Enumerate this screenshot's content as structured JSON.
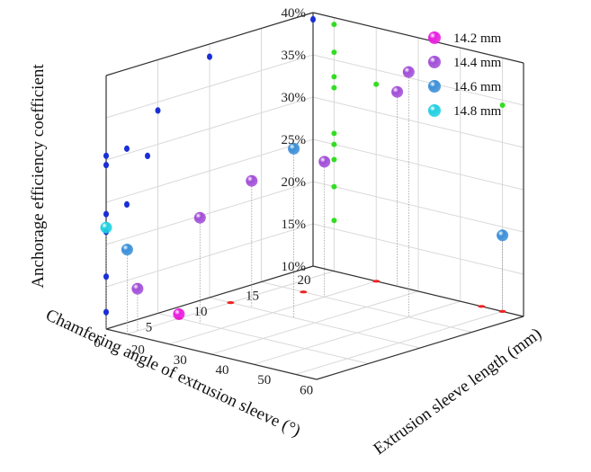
{
  "chart_data": {
    "type": "scatter3d",
    "x_axis": {
      "label": "Chamfering angle of extrusion sleeve (°)",
      "ticks": [
        "0",
        "5",
        "10",
        "15",
        "20"
      ],
      "range": [
        0,
        20
      ]
    },
    "y_axis": {
      "label": "Extrusion sleeve length (mm)",
      "ticks": [
        "20",
        "30",
        "40",
        "50",
        "60"
      ],
      "range": [
        15,
        65
      ]
    },
    "z_axis": {
      "label": "Anchorage efficiency coefficient",
      "ticks": [
        "10%",
        "15%",
        "20%",
        "25%",
        "30%",
        "35%",
        "40%"
      ],
      "range": [
        10,
        40
      ]
    },
    "grid": true,
    "legend_position": "top-right",
    "series": [
      {
        "name": "14.2 mm",
        "color": "#e81ee0",
        "points": [
          [
            5,
            20,
            10.5
          ]
        ]
      },
      {
        "name": "14.4 mm",
        "color": "#a24ed8",
        "points": [
          [
            1,
            20,
            15
          ],
          [
            5,
            25,
            22.5
          ],
          [
            10,
            25,
            25
          ],
          [
            15,
            30,
            26
          ],
          [
            20,
            35,
            33
          ],
          [
            15,
            50,
            39
          ]
        ]
      },
      {
        "name": "14.6 mm",
        "color": "#3b8fd8",
        "points": [
          [
            0,
            20,
            20
          ],
          [
            10,
            35,
            30
          ],
          [
            20,
            60,
            19
          ]
        ]
      },
      {
        "name": "14.8 mm",
        "color": "#20d0e0",
        "points": [
          [
            0,
            15,
            22
          ]
        ]
      }
    ],
    "projections": {
      "xz_blue_dots": [
        [
          0,
          12
        ],
        [
          0,
          16.2
        ],
        [
          0,
          21.5
        ],
        [
          0,
          23.6
        ],
        [
          0,
          29.4
        ],
        [
          0,
          30.5
        ],
        [
          2,
          24
        ],
        [
          2,
          30.6
        ],
        [
          4,
          29
        ],
        [
          5,
          34
        ],
        [
          10,
          38.5
        ],
        [
          20,
          39.2
        ]
      ],
      "yz_green_dots": [
        [
          20,
          26.3
        ],
        [
          20,
          25
        ],
        [
          20,
          20
        ],
        [
          20,
          16
        ],
        [
          20,
          23.2
        ],
        [
          20,
          35.9
        ],
        [
          20,
          33
        ],
        [
          20,
          31.7
        ],
        [
          20,
          39.2
        ],
        [
          30,
          33.3
        ],
        [
          60,
          34.4
        ]
      ],
      "xy_red_marks": [
        [
          5,
          20
        ],
        [
          10,
          20
        ],
        [
          15,
          25
        ],
        [
          20,
          30
        ],
        [
          20,
          55
        ],
        [
          20,
          60
        ]
      ]
    }
  }
}
